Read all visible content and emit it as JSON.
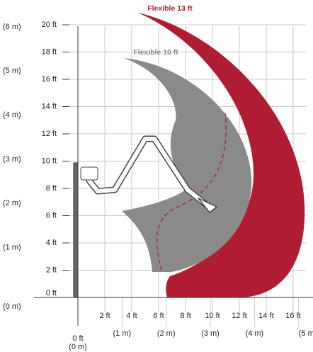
{
  "labels": {
    "flexible_13": "Flexible 13 ft",
    "flexible_10": "Flexible 10 ft"
  },
  "y_axis": {
    "feet": [
      "20 ft",
      "18 ft",
      "16 ft",
      "14 ft",
      "12 ft",
      "10 ft",
      "8 ft",
      "6 ft",
      "4 ft",
      "2 ft",
      "0 ft"
    ],
    "meters": [
      "(6 m)",
      "(5 m)",
      "(4 m)",
      "(3 m)",
      "(2 m)",
      "(1 m)",
      "(0 m)"
    ]
  },
  "x_axis": {
    "feet": [
      "0 ft",
      "2 ft",
      "4 ft",
      "6 ft",
      "8 ft",
      "10 ft",
      "12 ft",
      "14 ft",
      "16 ft"
    ],
    "meters": [
      "(0 m)",
      "(1 m)",
      "(2 m)",
      "(3 m)",
      "(4 m)",
      "(5 m)"
    ]
  }
}
